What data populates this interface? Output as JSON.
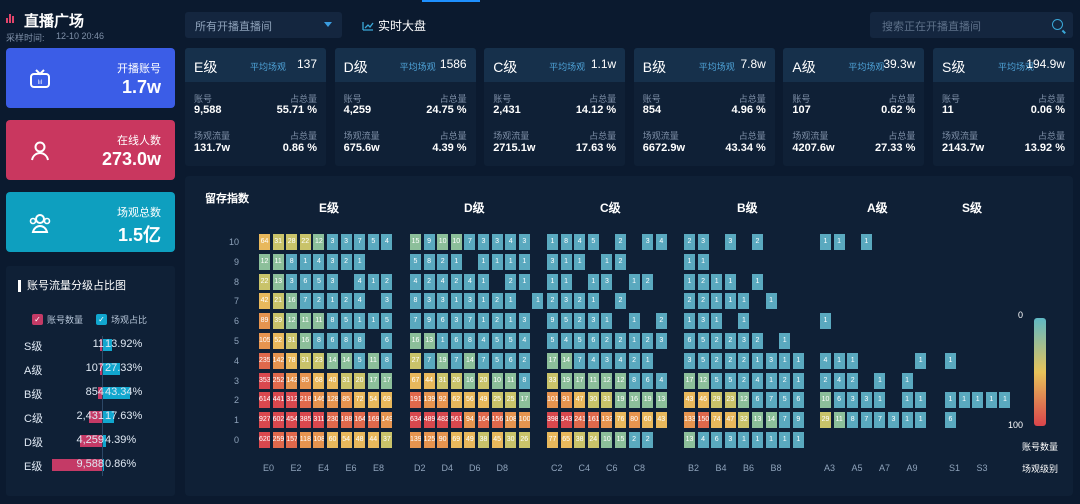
{
  "header": {
    "title": "直播广场",
    "sample_label": "采样时间:",
    "sample_time": "12-10 20:46"
  },
  "kpis": [
    {
      "label": "开播账号",
      "value": "1.7w",
      "color": "#3b5de7",
      "icon": "tv-icon"
    },
    {
      "label": "在线人数",
      "value": "273.0w",
      "color": "#c9375f",
      "icon": "user-icon"
    },
    {
      "label": "场观总数",
      "value": "1.5亿",
      "color": "#0e9fbf",
      "icon": "group-icon"
    }
  ],
  "toolbar": {
    "select_value": "所有开播直播间",
    "realtime_label": "实时大盘",
    "search_placeholder": "搜索正在开播直播间"
  },
  "grades": [
    {
      "name": "E级",
      "avg_label": "平均场观",
      "avg": "137",
      "acc_label": "账号",
      "acc": "9,588",
      "share_label": "占总量",
      "acc_share": "55.71 %",
      "flow_label": "场观流量",
      "flow": "131.7w",
      "flow_share": "0.86 %"
    },
    {
      "name": "D级",
      "avg_label": "平均场观",
      "avg": "1586",
      "acc_label": "账号",
      "acc": "4,259",
      "share_label": "占总量",
      "acc_share": "24.75 %",
      "flow_label": "场观流量",
      "flow": "675.6w",
      "flow_share": "4.39 %"
    },
    {
      "name": "C级",
      "avg_label": "平均场观",
      "avg": "1.1w",
      "acc_label": "账号",
      "acc": "2,431",
      "share_label": "占总量",
      "acc_share": "14.12 %",
      "flow_label": "场观流量",
      "flow": "2715.1w",
      "flow_share": "17.63 %"
    },
    {
      "name": "B级",
      "avg_label": "平均场观",
      "avg": "7.8w",
      "acc_label": "账号",
      "acc": "854",
      "share_label": "占总量",
      "acc_share": "4.96 %",
      "flow_label": "场观流量",
      "flow": "6672.9w",
      "flow_share": "43.34 %"
    },
    {
      "name": "A级",
      "avg_label": "平均场观",
      "avg": "39.3w",
      "acc_label": "账号",
      "acc": "107",
      "share_label": "占总量",
      "acc_share": "0.62 %",
      "flow_label": "场观流量",
      "flow": "4207.6w",
      "flow_share": "27.33 %"
    },
    {
      "name": "S级",
      "avg_label": "平均场观",
      "avg": "194.9w",
      "acc_label": "账号",
      "acc": "11",
      "share_label": "占总量",
      "acc_share": "0.06 %",
      "flow_label": "场观流量",
      "flow": "2143.7w",
      "flow_share": "13.92 %"
    }
  ],
  "share_panel": {
    "title": "账号流量分级占比图",
    "legend": [
      "账号数量",
      "场观占比"
    ],
    "colors": {
      "accounts": "#c43a66",
      "flow": "#11a7cf"
    },
    "rows": [
      {
        "grade": "S级",
        "count": "11",
        "count_num": 11,
        "pct": "13.92%",
        "pct_num": 13.92
      },
      {
        "grade": "A级",
        "count": "107",
        "count_num": 107,
        "pct": "27.33%",
        "pct_num": 27.33
      },
      {
        "grade": "B级",
        "count": "854",
        "count_num": 854,
        "pct": "43.34%",
        "pct_num": 43.34
      },
      {
        "grade": "C级",
        "count": "2,431",
        "count_num": 2431,
        "pct": "17.63%",
        "pct_num": 17.63
      },
      {
        "grade": "D级",
        "count": "4,259",
        "count_num": 4259,
        "pct": "4.39%",
        "pct_num": 4.39
      },
      {
        "grade": "E级",
        "count": "9,588",
        "count_num": 9588,
        "pct": "0.86%",
        "pct_num": 0.86
      }
    ]
  },
  "heatmap": {
    "title": "留存指数",
    "groups": [
      "E级",
      "D级",
      "C级",
      "B级",
      "A级",
      "S级"
    ],
    "y_labels": [
      "10",
      "9",
      "8",
      "7",
      "6",
      "5",
      "4",
      "3",
      "2",
      "1",
      "0"
    ],
    "x_labels": [
      [
        "E0",
        "E2",
        "E4",
        "E6",
        "E8"
      ],
      [
        "D2",
        "D4",
        "D6",
        "D8"
      ],
      [
        "C2",
        "C4",
        "C6",
        "C8"
      ],
      [
        "B2",
        "B4",
        "B6",
        "B8"
      ],
      [
        "A3",
        "A5",
        "A7",
        "A9"
      ],
      [
        "S1",
        "S3"
      ]
    ],
    "scale_min": "0",
    "scale_max": "100",
    "scale_label": "账号数量",
    "x_axis_label": "场观级别",
    "rows": [
      [
        "64 31 28 22 12 3 3 7 5 4",
        "15 9 10 10 7 3 3 4 3",
        "1 8 4 5 - 2 - 3 4",
        "2 3 - 3 - 2",
        "1 1 - 1",
        ""
      ],
      [
        "12 11 8 1 4 3 2 1",
        "5 8 2 1 - 1 1 1 1",
        "3 1 1 - 1 2",
        "1 1",
        "",
        ""
      ],
      [
        "22 13 3 6 5 3 - 4 1 2",
        "4 2 4 2 4 1 - 2 1",
        "1 1 - 1 3 - 1 2",
        "1 2 1 1 - 1",
        "",
        ""
      ],
      [
        "42 21 16 7 2 1 2 4 - 3",
        "8 3 3 1 3 1 2 1 - 1",
        "2 3 2 1 - 2",
        "2 2 1 1 1 - 1",
        "",
        ""
      ],
      [
        "89 39 12 11 11 8 5 1 1 5",
        "7 9 6 3 7 1 2 1 3",
        "9 5 2 3 1 - 1 - 2",
        "1 3 1 - 1",
        "1",
        ""
      ],
      [
        "105 52 31 16 8 6 8 8 - 6",
        "16 13 1 6 8 4 5 5 4",
        "5 4 5 6 2 2 1 2 3",
        "6 5 2 2 3 2 - 1",
        "",
        ""
      ],
      [
        "235 142 78 31 23 14 14 5 11 8",
        "27 7 19 7 14 7 5 6 2",
        "17 14 7 4 3 4 2 1",
        "3 5 2 2 2 1 3 1 1",
        "4 1 1 - - - - 1",
        "1"
      ],
      [
        "353 252 142 85 68 40 31 20 17 17",
        "67 44 31 26 16 20 10 11 8",
        "33 19 17 11 12 12 8 6 4",
        "17 12 5 5 2 4 1 2 1",
        "2 4 2 - 1 - 1",
        ""
      ],
      [
        "614 441 312 218 146 128 85 72 54 69",
        "191 139 92 62 56 49 25 25 17",
        "101 91 47 30 31 19 16 19 13",
        "43 46 29 23 12 6 7 5 6",
        "10 6 3 3 1 - 1 1",
        "1 1 1 1 1"
      ],
      [
        "927 602 454 385 311 230 188 164 169 149",
        "634 489 482 561 94 164 156 108 100",
        "398 343 241 161 132 76 80 60 43",
        "133 150 74 47 32 13 14 7 9",
        "29 11 8 7 7 3 1 1",
        "6"
      ],
      [
        "620 259 157 118 108 60 54 48 44 37",
        "139 125 90 69 49 38 45 30 26",
        "77 65 38 24 10 15 2 2",
        "13 4 6 3 1 1 1 1 1",
        "",
        ""
      ]
    ]
  }
}
